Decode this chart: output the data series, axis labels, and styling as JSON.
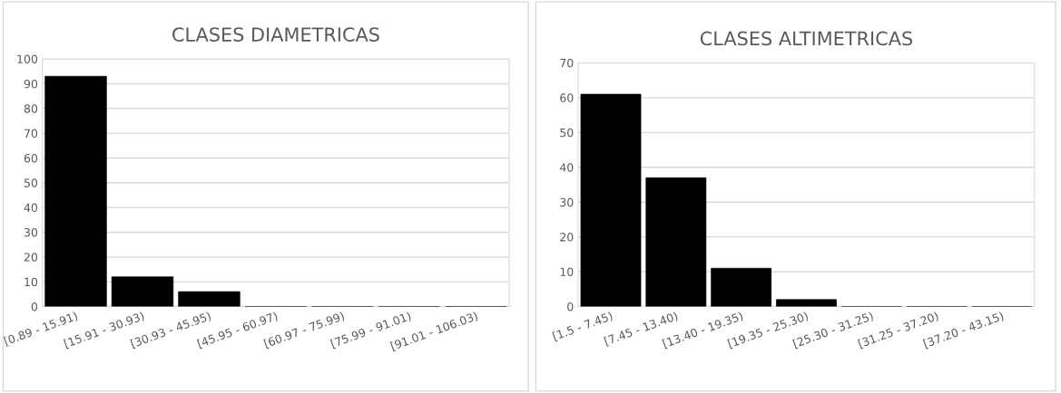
{
  "chart_data": [
    {
      "type": "bar",
      "title": "CLASES DIAMETRICAS",
      "categories": [
        "[0.89 - 15.91)",
        "[15.91 - 30.93)",
        "[30.93 - 45.95)",
        "[45.95 - 60.97)",
        "[60.97 - 75.99)",
        "[75.99 - 91.01)",
        "[91.01 - 106.03)"
      ],
      "values": [
        93,
        12,
        6,
        0,
        0,
        0,
        0
      ],
      "color": "#000000",
      "ylim": [
        0,
        100
      ],
      "yticks": [
        0,
        10,
        20,
        30,
        40,
        50,
        60,
        70,
        80,
        90,
        100
      ],
      "grid": "y"
    },
    {
      "type": "bar",
      "title": "CLASES ALTIMETRICAS",
      "categories": [
        "[1.5 - 7.45)",
        "[7.45 - 13.40)",
        "[13.40 - 19.35)",
        "[19.35 - 25.30)",
        "[25.30 - 31.25)",
        "[31.25 - 37.20)",
        "[37.20 - 43.15)"
      ],
      "values": [
        61,
        37,
        11,
        2,
        0,
        0,
        0
      ],
      "color": "#000000",
      "ylim": [
        0,
        70
      ],
      "yticks": [
        0,
        10,
        20,
        30,
        40,
        50,
        60,
        70
      ],
      "grid": "y"
    }
  ]
}
